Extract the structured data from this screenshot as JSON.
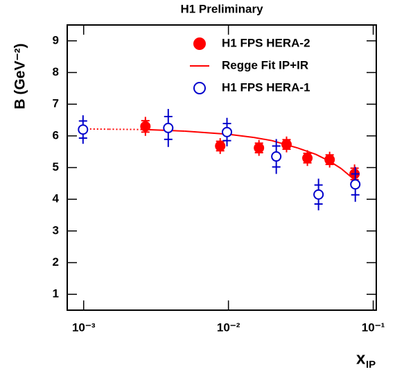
{
  "chart_data": {
    "type": "scatter",
    "title": "H1 Preliminary",
    "ylabel": "B (GeV⁻²)",
    "xlabel": "x",
    "xlabel_sub": "IP",
    "log_x": true,
    "xlim": [
      0.00077,
      0.105
    ],
    "xticks": [
      {
        "value": 0.001,
        "label": "10⁻³"
      },
      {
        "value": 0.01,
        "label": "10⁻²"
      },
      {
        "value": 0.1,
        "label": "10⁻¹"
      }
    ],
    "ylim": [
      0.5,
      9.5
    ],
    "yticks": [
      1,
      2,
      3,
      4,
      5,
      6,
      7,
      8,
      9
    ],
    "legend": "top-right",
    "series": [
      {
        "name": "H1 FPS HERA-2",
        "color": "#ff0000",
        "marker": "filled",
        "x": [
          0.00267,
          0.00877,
          0.01625,
          0.0252,
          0.0351,
          0.05,
          0.0743
        ],
        "values": [
          6.3,
          5.68,
          5.62,
          5.73,
          5.3,
          5.25,
          4.8
        ],
        "errors": [
          0.3,
          0.25,
          0.25,
          0.25,
          0.25,
          0.25,
          0.3
        ]
      },
      {
        "name": "Regge Fit IP+IR",
        "color": "#ff0000",
        "marker": "line",
        "x": [
          0.00099,
          0.0015,
          0.0027,
          0.005,
          0.01,
          0.015,
          0.02,
          0.03,
          0.04,
          0.05,
          0.06,
          0.075
        ],
        "values": [
          6.22,
          6.21,
          6.2,
          6.15,
          6.05,
          5.95,
          5.85,
          5.62,
          5.42,
          5.2,
          4.97,
          4.6
        ]
      },
      {
        "name": "H1 FPS HERA-1",
        "color": "#0000cc",
        "marker": "open",
        "x": [
          0.00099,
          0.00384,
          0.00977,
          0.0214,
          0.0419,
          0.0752
        ],
        "values": [
          6.2,
          6.25,
          6.12,
          5.35,
          4.15,
          4.47
        ],
        "errors": [
          0.45,
          0.6,
          0.45,
          0.55,
          0.5,
          0.55
        ]
      }
    ]
  }
}
